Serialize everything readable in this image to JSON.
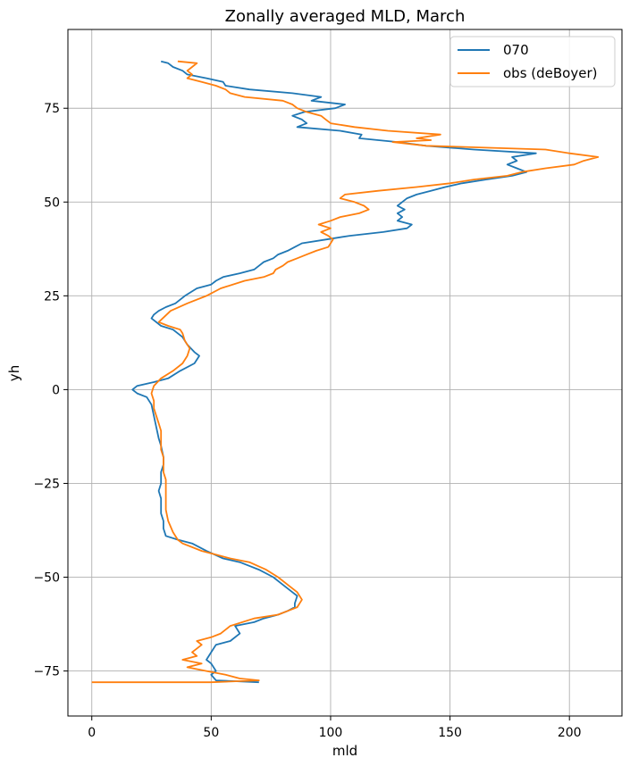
{
  "chart_data": {
    "type": "line",
    "title": "Zonally averaged MLD, March",
    "xlabel": "mld",
    "ylabel": "yh",
    "xlim": [
      -10,
      222
    ],
    "ylim": [
      -87,
      96
    ],
    "xticks": [
      0,
      50,
      100,
      150,
      200
    ],
    "xtick_labels": [
      "0",
      "50",
      "100",
      "150",
      "200"
    ],
    "yticks": [
      -75,
      -50,
      -25,
      0,
      25,
      50,
      75
    ],
    "ytick_labels": [
      "−75",
      "−50",
      "−25",
      "0",
      "25",
      "50",
      "75"
    ],
    "grid": true,
    "legend_position": "top-right",
    "series": [
      {
        "name": "070",
        "color": "#1f77b4",
        "points": [
          [
            70,
            -78
          ],
          [
            52,
            -77.5
          ],
          [
            50,
            -76
          ],
          [
            52,
            -75
          ],
          [
            50,
            -73
          ],
          [
            48,
            -72
          ],
          [
            50,
            -70
          ],
          [
            52,
            -68
          ],
          [
            58,
            -67
          ],
          [
            62,
            -65
          ],
          [
            60,
            -63
          ],
          [
            68,
            -62
          ],
          [
            72,
            -61
          ],
          [
            78,
            -60
          ],
          [
            82,
            -59
          ],
          [
            85,
            -58
          ],
          [
            85,
            -57
          ],
          [
            86,
            -55
          ],
          [
            84,
            -54
          ],
          [
            80,
            -52
          ],
          [
            76,
            -50
          ],
          [
            70,
            -48
          ],
          [
            62,
            -46
          ],
          [
            55,
            -45
          ],
          [
            48,
            -43
          ],
          [
            42,
            -41
          ],
          [
            36,
            -40
          ],
          [
            31,
            -39
          ],
          [
            30,
            -37
          ],
          [
            30,
            -35
          ],
          [
            29,
            -33
          ],
          [
            29,
            -31
          ],
          [
            29,
            -29
          ],
          [
            28,
            -27
          ],
          [
            29,
            -25
          ],
          [
            29,
            -22
          ],
          [
            30,
            -20
          ],
          [
            30,
            -18
          ],
          [
            29,
            -15
          ],
          [
            28,
            -13
          ],
          [
            27,
            -10
          ],
          [
            26,
            -7
          ],
          [
            25,
            -4
          ],
          [
            23,
            -2
          ],
          [
            19,
            -1
          ],
          [
            17,
            0
          ],
          [
            19,
            1
          ],
          [
            26,
            2
          ],
          [
            32,
            3
          ],
          [
            37,
            5
          ],
          [
            43,
            7
          ],
          [
            45,
            9
          ],
          [
            43,
            10
          ],
          [
            40,
            12
          ],
          [
            38,
            14
          ],
          [
            34,
            16
          ],
          [
            29,
            17
          ],
          [
            25,
            19
          ],
          [
            26,
            20
          ],
          [
            28,
            21
          ],
          [
            31,
            22
          ],
          [
            35,
            23
          ],
          [
            39,
            25
          ],
          [
            44,
            27
          ],
          [
            50,
            28
          ],
          [
            52,
            29
          ],
          [
            55,
            30
          ],
          [
            62,
            31
          ],
          [
            68,
            32
          ],
          [
            70,
            33
          ],
          [
            72,
            34
          ],
          [
            76,
            35
          ],
          [
            78,
            36
          ],
          [
            82,
            37
          ],
          [
            85,
            38
          ],
          [
            88,
            39
          ],
          [
            98,
            40
          ],
          [
            108,
            41
          ],
          [
            122,
            42
          ],
          [
            132,
            43
          ],
          [
            134,
            44
          ],
          [
            128,
            45
          ],
          [
            130,
            46
          ],
          [
            128,
            47
          ],
          [
            131,
            48
          ],
          [
            128,
            49
          ],
          [
            130,
            50
          ],
          [
            132,
            51
          ],
          [
            136,
            52
          ],
          [
            142,
            53
          ],
          [
            148,
            54
          ],
          [
            155,
            55
          ],
          [
            165,
            56
          ],
          [
            176,
            57
          ],
          [
            182,
            58
          ],
          [
            178,
            59
          ],
          [
            174,
            60
          ],
          [
            178,
            61
          ],
          [
            176,
            62
          ],
          [
            186,
            63
          ],
          [
            160,
            64
          ],
          [
            140,
            65
          ],
          [
            128,
            66
          ],
          [
            120,
            66.5
          ],
          [
            112,
            67
          ],
          [
            113,
            68
          ],
          [
            104,
            69
          ],
          [
            86,
            70
          ],
          [
            90,
            71
          ],
          [
            88,
            72
          ],
          [
            84,
            73
          ],
          [
            89,
            74
          ],
          [
            102,
            75
          ],
          [
            106,
            76
          ],
          [
            92,
            77
          ],
          [
            96,
            78
          ],
          [
            84,
            79
          ],
          [
            66,
            80
          ],
          [
            56,
            81
          ],
          [
            55,
            82
          ],
          [
            48,
            83
          ],
          [
            40,
            84
          ],
          [
            38,
            85
          ],
          [
            34,
            86
          ],
          [
            32,
            87
          ],
          [
            29,
            87.5
          ]
        ]
      },
      {
        "name": "obs (deBoyer)",
        "color": "#ff7f0e",
        "points": [
          [
            0,
            -78
          ],
          [
            50,
            -78
          ],
          [
            70,
            -77.5
          ],
          [
            62,
            -77
          ],
          [
            56,
            -76
          ],
          [
            48,
            -75
          ],
          [
            40,
            -74
          ],
          [
            46,
            -73
          ],
          [
            38,
            -72
          ],
          [
            44,
            -71
          ],
          [
            42,
            -70
          ],
          [
            44,
            -69
          ],
          [
            46,
            -68
          ],
          [
            44,
            -67
          ],
          [
            50,
            -66
          ],
          [
            54,
            -65
          ],
          [
            58,
            -63
          ],
          [
            68,
            -61
          ],
          [
            78,
            -60
          ],
          [
            82,
            -59
          ],
          [
            86,
            -58
          ],
          [
            88,
            -56
          ],
          [
            86,
            -54
          ],
          [
            82,
            -52
          ],
          [
            78,
            -50
          ],
          [
            73,
            -48
          ],
          [
            66,
            -46
          ],
          [
            58,
            -45
          ],
          [
            52,
            -44
          ],
          [
            46,
            -43
          ],
          [
            42,
            -42
          ],
          [
            38,
            -41
          ],
          [
            36,
            -40
          ],
          [
            34,
            -38
          ],
          [
            32,
            -35
          ],
          [
            31,
            -32
          ],
          [
            31,
            -29
          ],
          [
            31,
            -26
          ],
          [
            31,
            -24
          ],
          [
            30,
            -22
          ],
          [
            30,
            -20
          ],
          [
            30,
            -18
          ],
          [
            29,
            -16
          ],
          [
            29,
            -13
          ],
          [
            29,
            -11
          ],
          [
            28,
            -9
          ],
          [
            27,
            -7
          ],
          [
            26,
            -5
          ],
          [
            26,
            -3
          ],
          [
            25,
            -1
          ],
          [
            26,
            1
          ],
          [
            29,
            3
          ],
          [
            34,
            5
          ],
          [
            38,
            7
          ],
          [
            40,
            9
          ],
          [
            41,
            11
          ],
          [
            39,
            13
          ],
          [
            38,
            15
          ],
          [
            37,
            16
          ],
          [
            32,
            17
          ],
          [
            28,
            18
          ],
          [
            33,
            21
          ],
          [
            40,
            23
          ],
          [
            48,
            25
          ],
          [
            54,
            27
          ],
          [
            64,
            29
          ],
          [
            72,
            30
          ],
          [
            76,
            31
          ],
          [
            77,
            32
          ],
          [
            80,
            33
          ],
          [
            82,
            34
          ],
          [
            86,
            35
          ],
          [
            90,
            36
          ],
          [
            94,
            37
          ],
          [
            99,
            38
          ],
          [
            100,
            39
          ],
          [
            101,
            40
          ],
          [
            99,
            41
          ],
          [
            96,
            42
          ],
          [
            100,
            43
          ],
          [
            95,
            44
          ],
          [
            100,
            45
          ],
          [
            104,
            46
          ],
          [
            112,
            47
          ],
          [
            116,
            48
          ],
          [
            114,
            49
          ],
          [
            110,
            50
          ],
          [
            104,
            51
          ],
          [
            106,
            52
          ],
          [
            120,
            53
          ],
          [
            136,
            54
          ],
          [
            150,
            55
          ],
          [
            160,
            56
          ],
          [
            174,
            57
          ],
          [
            180,
            58
          ],
          [
            190,
            59
          ],
          [
            202,
            60
          ],
          [
            206,
            61
          ],
          [
            212,
            62
          ],
          [
            200,
            63
          ],
          [
            190,
            64
          ],
          [
            140,
            65
          ],
          [
            126,
            66
          ],
          [
            142,
            66.5
          ],
          [
            136,
            67
          ],
          [
            146,
            68
          ],
          [
            124,
            69
          ],
          [
            110,
            70
          ],
          [
            100,
            71
          ],
          [
            98,
            72
          ],
          [
            96,
            73
          ],
          [
            90,
            74
          ],
          [
            86,
            75
          ],
          [
            84,
            76
          ],
          [
            80,
            77
          ],
          [
            64,
            78
          ],
          [
            58,
            79
          ],
          [
            56,
            80
          ],
          [
            52,
            81
          ],
          [
            46,
            82
          ],
          [
            40,
            83
          ],
          [
            42,
            84
          ],
          [
            40,
            85
          ],
          [
            42,
            86
          ],
          [
            44,
            87
          ],
          [
            36,
            87.5
          ]
        ]
      }
    ]
  }
}
